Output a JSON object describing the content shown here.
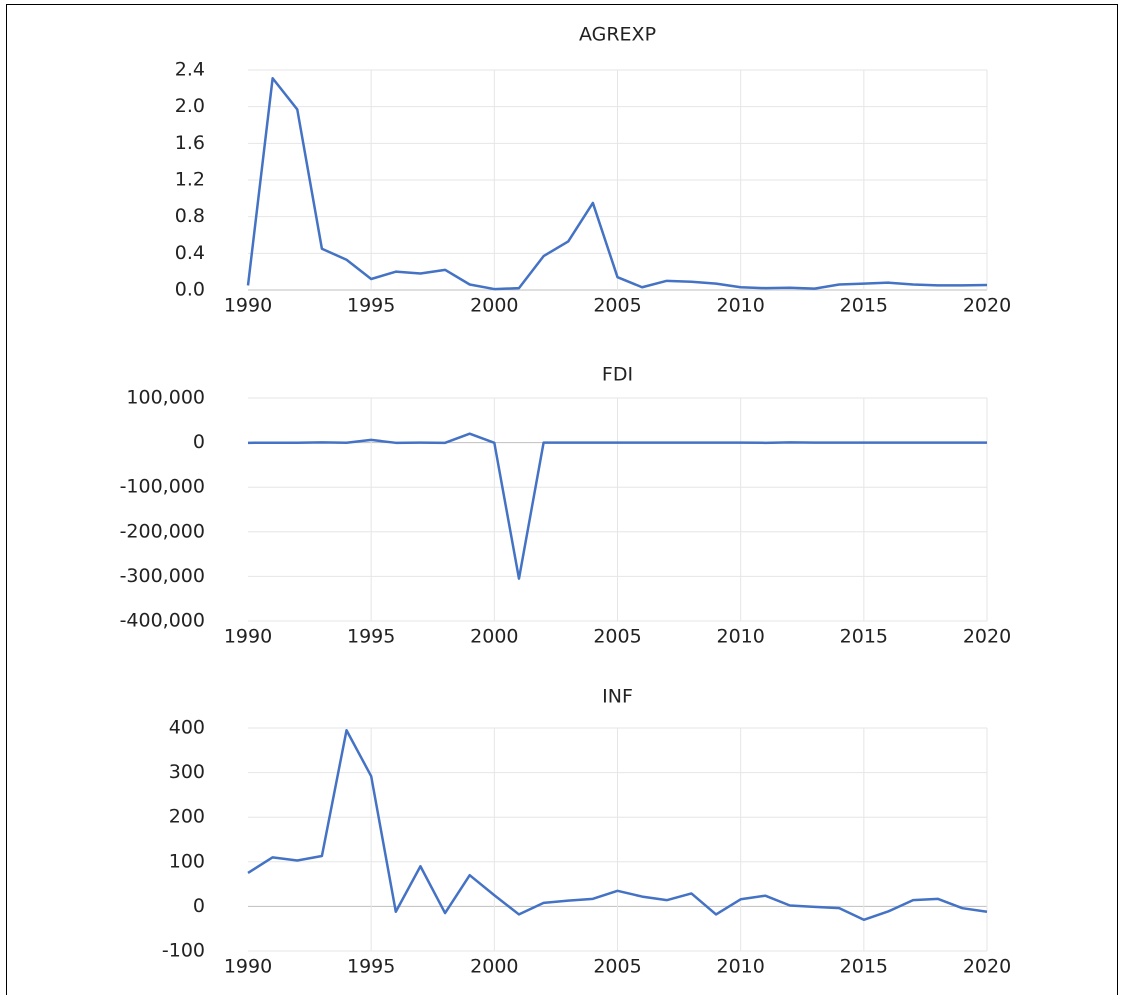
{
  "chart_data": [
    {
      "type": "line",
      "title": "AGREXP",
      "color": "#4472c4",
      "grid": true,
      "x": [
        1990,
        1991,
        1992,
        1993,
        1994,
        1995,
        1996,
        1997,
        1998,
        1999,
        2000,
        2001,
        2002,
        2003,
        2004,
        2005,
        2006,
        2007,
        2008,
        2009,
        2010,
        2011,
        2012,
        2013,
        2014,
        2015,
        2016,
        2017,
        2018,
        2019,
        2020
      ],
      "values": [
        0.05,
        2.31,
        1.97,
        0.45,
        0.33,
        0.12,
        0.2,
        0.18,
        0.22,
        0.06,
        0.01,
        0.02,
        0.37,
        0.53,
        0.95,
        0.14,
        0.03,
        0.1,
        0.09,
        0.07,
        0.03,
        0.02,
        0.025,
        0.015,
        0.06,
        0.07,
        0.08,
        0.06,
        0.05,
        0.05,
        0.055
      ],
      "xlim": [
        1990,
        2020
      ],
      "xticks": [
        1990,
        1995,
        2000,
        2005,
        2010,
        2015,
        2020
      ],
      "ylim": [
        0,
        2.4
      ],
      "yticks": [
        {
          "value": 0,
          "label": "0.0"
        },
        0.4,
        0.8,
        1.2,
        1.6,
        {
          "value": 2,
          "label": "2.0"
        },
        2.4
      ]
    },
    {
      "type": "line",
      "title": "FDI",
      "color": "#4472c4",
      "grid": true,
      "x": [
        1990,
        1991,
        1992,
        1993,
        1994,
        1995,
        1996,
        1997,
        1998,
        1999,
        2000,
        2001,
        2002,
        2003,
        2004,
        2005,
        2006,
        2007,
        2008,
        2009,
        2010,
        2011,
        2012,
        2013,
        2014,
        2015,
        2016,
        2017,
        2018,
        2019,
        2020
      ],
      "values": [
        -500,
        -400,
        -200,
        500,
        -300,
        6000,
        -500,
        0,
        -500,
        20000,
        -500,
        -305000,
        0,
        0,
        0,
        0,
        0,
        0,
        0,
        0,
        0,
        -500,
        500,
        0,
        0,
        0,
        0,
        0,
        0,
        0,
        0
      ],
      "xlim": [
        1990,
        2020
      ],
      "xticks": [
        1990,
        1995,
        2000,
        2005,
        2010,
        2015,
        2020
      ],
      "ylim": [
        -400000,
        100000
      ],
      "yticks": [
        {
          "value": -400000,
          "label": "-400,000"
        },
        {
          "value": -300000,
          "label": "-300,000"
        },
        {
          "value": -200000,
          "label": "-200,000"
        },
        {
          "value": -100000,
          "label": "-100,000"
        },
        0,
        {
          "value": 100000,
          "label": "100,000"
        }
      ]
    },
    {
      "type": "line",
      "title": "INF",
      "color": "#4472c4",
      "grid": true,
      "x": [
        1990,
        1991,
        1992,
        1993,
        1994,
        1995,
        1996,
        1997,
        1998,
        1999,
        2000,
        2001,
        2002,
        2003,
        2004,
        2005,
        2006,
        2007,
        2008,
        2009,
        2010,
        2011,
        2012,
        2013,
        2014,
        2015,
        2016,
        2017,
        2018,
        2019,
        2020
      ],
      "values": [
        75,
        110,
        103,
        113,
        395,
        292,
        -12,
        90,
        -15,
        70,
        25,
        -18,
        8,
        13,
        17,
        35,
        22,
        14,
        29,
        -18,
        16,
        24,
        2,
        -1,
        -4,
        -30,
        -11,
        14,
        17,
        -4,
        -12
      ],
      "xlim": [
        1990,
        2020
      ],
      "xticks": [
        1990,
        1995,
        2000,
        2005,
        2010,
        2015,
        2020
      ],
      "ylim": [
        -100,
        400
      ],
      "yticks": [
        -100,
        0,
        100,
        200,
        300,
        400
      ]
    }
  ]
}
